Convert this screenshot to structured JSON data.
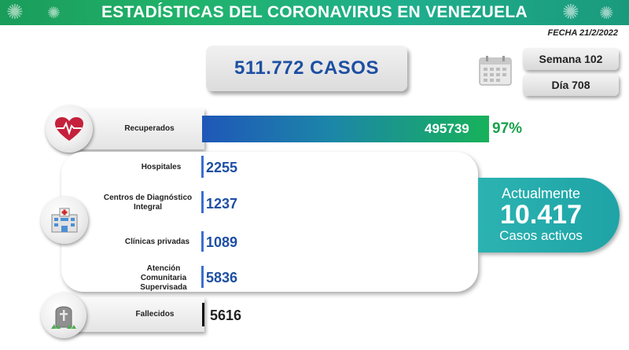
{
  "header": {
    "title": "ESTADÍSTICAS DEL CORONAVIRUS EN VENEZUELA",
    "date": "FECHA 21/2/2022"
  },
  "summary": {
    "cases": "511.772 CASOS",
    "week": "Semana 102",
    "day": "Día 708"
  },
  "recovered": {
    "label": "Recuperados",
    "value": "495739",
    "percent": "97%"
  },
  "hospitalization": {
    "rows": [
      {
        "label": "Hospitales",
        "value": "2255"
      },
      {
        "label": "Centros de Diagnóstico Integral",
        "value": "1237"
      },
      {
        "label": "Clínicas privadas",
        "value": "1089"
      },
      {
        "label": "Atención Comunitaria Supervisada",
        "value": "5836"
      }
    ]
  },
  "active": {
    "line1": "Actualmente",
    "number": "10.417",
    "line2": "Casos activos"
  },
  "deaths": {
    "label": "Fallecidos",
    "value": "5616"
  },
  "icons": [
    "virus-icon",
    "calendar-icon",
    "heart-icon",
    "hospital-icon",
    "tombstone-icon"
  ],
  "colors": {
    "banner": "#20b36b",
    "accent_blue": "#1d4fa3",
    "accent_green": "#17a24a",
    "active_teal": "#2bb3b1"
  }
}
